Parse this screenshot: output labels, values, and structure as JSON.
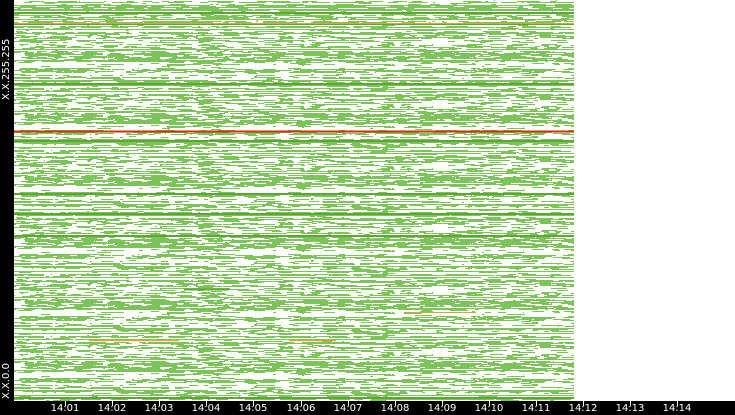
{
  "axis": {
    "y_top_label": "X.X.255.255",
    "y_bottom_label": "X.X.0.0",
    "time_labels": [
      "14:01",
      "14:02",
      "14:03",
      "14:04",
      "14:05",
      "14:06",
      "14:07",
      "14:08",
      "14:09",
      "14:10",
      "14:11",
      "14:12",
      "14:13",
      "14:14"
    ]
  },
  "colors": {
    "background": "#ffffff",
    "axis_bg": "#000000",
    "axis_text": "#ffffff",
    "traffic_normal": "#7cc35a",
    "traffic_dense": "#5aa832",
    "traffic_warm": "#d9a23a",
    "traffic_hot": "#cc3300"
  }
}
